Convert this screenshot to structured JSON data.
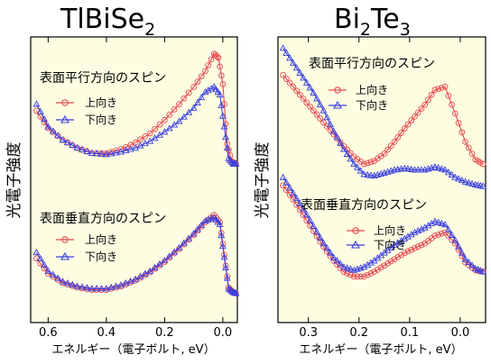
{
  "panel_left": {
    "title_main": "TlBiSe",
    "title_sub": "2",
    "ylabel": "光電子強度",
    "xlabel": "エネルギー（電子ボルト, eV）",
    "ticks": [
      "0.6",
      "0.4",
      "0.2",
      "0.0"
    ],
    "upper_caption": "表面平行方向のスピン",
    "lower_caption": "表面垂直方向のスピン",
    "legend_up": "上向き",
    "legend_down": "下向き"
  },
  "panel_right": {
    "title_parts": [
      "Bi",
      "2",
      "Te",
      "3"
    ],
    "ylabel": "光電子強度",
    "xlabel": "エネルギー（電子ボルト, eV）",
    "ticks": [
      "0.3",
      "0.2",
      "0.1",
      "0.0"
    ],
    "upper_caption": "表面平行方向のスピン",
    "lower_caption": "表面垂直方向のスピン",
    "legend_up": "上向き",
    "legend_down": "下向き"
  },
  "colors": {
    "up": "#e8484e",
    "down": "#3a3fe0",
    "panel_bg": "#fdfde2"
  },
  "chart_data": [
    {
      "type": "scatter",
      "title": "TlBiSe2",
      "xlabel": "エネルギー（電子ボルト, eV）",
      "ylabel": "光電子強度",
      "xlim": [
        0.66,
        -0.05
      ],
      "xticks": [
        0.6,
        0.4,
        0.2,
        0.0
      ],
      "groups": [
        {
          "caption": "表面平行方向のスピン",
          "series": [
            {
              "name": "上向き",
              "color": "#e8484e",
              "marker": "circle",
              "points": [
                [
                  0.64,
                  0.7
                ],
                [
                  0.6,
                  0.57
                ],
                [
                  0.55,
                  0.48
                ],
                [
                  0.5,
                  0.42
                ],
                [
                  0.45,
                  0.38
                ],
                [
                  0.4,
                  0.38
                ],
                [
                  0.35,
                  0.41
                ],
                [
                  0.3,
                  0.46
                ],
                [
                  0.25,
                  0.53
                ],
                [
                  0.2,
                  0.63
                ],
                [
                  0.15,
                  0.75
                ],
                [
                  0.1,
                  0.88
                ],
                [
                  0.06,
                  1.0
                ],
                [
                  0.03,
                  1.13
                ],
                [
                  0.015,
                  1.1
                ],
                [
                  0.0,
                  0.9
                ],
                [
                  -0.015,
                  0.45
                ],
                [
                  -0.03,
                  0.32
                ],
                [
                  -0.045,
                  0.3
                ]
              ]
            },
            {
              "name": "下向き",
              "color": "#3a3fe0",
              "marker": "triangle",
              "points": [
                [
                  0.64,
                  0.75
                ],
                [
                  0.6,
                  0.58
                ],
                [
                  0.55,
                  0.48
                ],
                [
                  0.5,
                  0.42
                ],
                [
                  0.45,
                  0.38
                ],
                [
                  0.4,
                  0.37
                ],
                [
                  0.35,
                  0.39
                ],
                [
                  0.3,
                  0.42
                ],
                [
                  0.25,
                  0.47
                ],
                [
                  0.2,
                  0.54
                ],
                [
                  0.15,
                  0.62
                ],
                [
                  0.1,
                  0.72
                ],
                [
                  0.06,
                  0.84
                ],
                [
                  0.03,
                  0.88
                ],
                [
                  0.01,
                  0.82
                ],
                [
                  -0.005,
                  0.58
                ],
                [
                  -0.02,
                  0.34
                ],
                [
                  -0.035,
                  0.3
                ],
                [
                  -0.045,
                  0.3
                ]
              ]
            }
          ]
        },
        {
          "caption": "表面垂直方向のスピン",
          "series": [
            {
              "name": "上向き",
              "color": "#e8484e",
              "marker": "circle",
              "points": [
                [
                  0.64,
                  0.55
                ],
                [
                  0.6,
                  0.42
                ],
                [
                  0.55,
                  0.34
                ],
                [
                  0.5,
                  0.3
                ],
                [
                  0.45,
                  0.28
                ],
                [
                  0.4,
                  0.28
                ],
                [
                  0.35,
                  0.31
                ],
                [
                  0.3,
                  0.36
                ],
                [
                  0.25,
                  0.43
                ],
                [
                  0.2,
                  0.52
                ],
                [
                  0.15,
                  0.63
                ],
                [
                  0.1,
                  0.75
                ],
                [
                  0.06,
                  0.86
                ],
                [
                  0.03,
                  0.92
                ],
                [
                  0.01,
                  0.86
                ],
                [
                  -0.005,
                  0.58
                ],
                [
                  -0.02,
                  0.3
                ],
                [
                  -0.035,
                  0.26
                ],
                [
                  -0.045,
                  0.25
                ]
              ]
            },
            {
              "name": "下向き",
              "color": "#3a3fe0",
              "marker": "triangle",
              "points": [
                [
                  0.64,
                  0.6
                ],
                [
                  0.6,
                  0.44
                ],
                [
                  0.55,
                  0.35
                ],
                [
                  0.5,
                  0.31
                ],
                [
                  0.45,
                  0.29
                ],
                [
                  0.4,
                  0.29
                ],
                [
                  0.35,
                  0.32
                ],
                [
                  0.3,
                  0.37
                ],
                [
                  0.25,
                  0.44
                ],
                [
                  0.2,
                  0.53
                ],
                [
                  0.15,
                  0.64
                ],
                [
                  0.1,
                  0.76
                ],
                [
                  0.06,
                  0.87
                ],
                [
                  0.03,
                  0.9
                ],
                [
                  0.01,
                  0.84
                ],
                [
                  -0.005,
                  0.56
                ],
                [
                  -0.02,
                  0.29
                ],
                [
                  -0.035,
                  0.26
                ],
                [
                  -0.045,
                  0.25
                ]
              ]
            }
          ]
        }
      ]
    },
    {
      "type": "scatter",
      "title": "Bi2Te3",
      "xlabel": "エネルギー（電子ボルト, eV）",
      "ylabel": "光電子強度",
      "xlim": [
        0.36,
        -0.05
      ],
      "xticks": [
        0.3,
        0.2,
        0.1,
        0.0
      ],
      "groups": [
        {
          "caption": "表面平行方向のスピン",
          "series": [
            {
              "name": "上向き",
              "color": "#e8484e",
              "marker": "circle",
              "points": [
                [
                  0.35,
                  1.0
                ],
                [
                  0.33,
                  0.92
                ],
                [
                  0.31,
                  0.84
                ],
                [
                  0.29,
                  0.76
                ],
                [
                  0.27,
                  0.68
                ],
                [
                  0.25,
                  0.6
                ],
                [
                  0.23,
                  0.52
                ],
                [
                  0.21,
                  0.45
                ],
                [
                  0.19,
                  0.4
                ],
                [
                  0.17,
                  0.42
                ],
                [
                  0.15,
                  0.47
                ],
                [
                  0.13,
                  0.55
                ],
                [
                  0.11,
                  0.64
                ],
                [
                  0.09,
                  0.72
                ],
                [
                  0.07,
                  0.8
                ],
                [
                  0.05,
                  0.9
                ],
                [
                  0.03,
                  0.92
                ],
                [
                  0.01,
                  0.74
                ],
                [
                  -0.01,
                  0.55
                ],
                [
                  -0.03,
                  0.43
                ],
                [
                  -0.045,
                  0.4
                ]
              ]
            },
            {
              "name": "下向き",
              "color": "#3a3fe0",
              "marker": "triangle",
              "points": [
                [
                  0.35,
                  1.18
                ],
                [
                  0.33,
                  1.08
                ],
                [
                  0.31,
                  0.98
                ],
                [
                  0.29,
                  0.88
                ],
                [
                  0.27,
                  0.76
                ],
                [
                  0.25,
                  0.62
                ],
                [
                  0.23,
                  0.5
                ],
                [
                  0.21,
                  0.4
                ],
                [
                  0.19,
                  0.33
                ],
                [
                  0.17,
                  0.32
                ],
                [
                  0.15,
                  0.34
                ],
                [
                  0.13,
                  0.36
                ],
                [
                  0.11,
                  0.37
                ],
                [
                  0.09,
                  0.36
                ],
                [
                  0.07,
                  0.36
                ],
                [
                  0.05,
                  0.38
                ],
                [
                  0.03,
                  0.36
                ],
                [
                  0.01,
                  0.31
                ],
                [
                  -0.01,
                  0.28
                ],
                [
                  -0.03,
                  0.26
                ],
                [
                  -0.045,
                  0.25
                ]
              ]
            }
          ]
        },
        {
          "caption": "表面垂直方向のスピン",
          "series": [
            {
              "name": "上向き",
              "color": "#e8484e",
              "marker": "circle",
              "points": [
                [
                  0.35,
                  0.85
                ],
                [
                  0.33,
                  0.76
                ],
                [
                  0.31,
                  0.66
                ],
                [
                  0.29,
                  0.56
                ],
                [
                  0.27,
                  0.46
                ],
                [
                  0.25,
                  0.37
                ],
                [
                  0.23,
                  0.3
                ],
                [
                  0.21,
                  0.27
                ],
                [
                  0.19,
                  0.27
                ],
                [
                  0.17,
                  0.3
                ],
                [
                  0.15,
                  0.34
                ],
                [
                  0.13,
                  0.38
                ],
                [
                  0.11,
                  0.42
                ],
                [
                  0.09,
                  0.45
                ],
                [
                  0.07,
                  0.48
                ],
                [
                  0.05,
                  0.53
                ],
                [
                  0.03,
                  0.55
                ],
                [
                  0.01,
                  0.48
                ],
                [
                  -0.01,
                  0.36
                ],
                [
                  -0.03,
                  0.31
                ],
                [
                  -0.045,
                  0.3
                ]
              ]
            },
            {
              "name": "下向き",
              "color": "#3a3fe0",
              "marker": "triangle",
              "points": [
                [
                  0.35,
                  0.9
                ],
                [
                  0.33,
                  0.8
                ],
                [
                  0.31,
                  0.7
                ],
                [
                  0.29,
                  0.59
                ],
                [
                  0.27,
                  0.48
                ],
                [
                  0.25,
                  0.39
                ],
                [
                  0.23,
                  0.33
                ],
                [
                  0.21,
                  0.31
                ],
                [
                  0.19,
                  0.33
                ],
                [
                  0.17,
                  0.37
                ],
                [
                  0.15,
                  0.42
                ],
                [
                  0.13,
                  0.47
                ],
                [
                  0.11,
                  0.51
                ],
                [
                  0.09,
                  0.55
                ],
                [
                  0.07,
                  0.58
                ],
                [
                  0.05,
                  0.62
                ],
                [
                  0.03,
                  0.6
                ],
                [
                  0.01,
                  0.5
                ],
                [
                  -0.01,
                  0.38
                ],
                [
                  -0.03,
                  0.32
                ],
                [
                  -0.045,
                  0.3
                ]
              ]
            }
          ]
        }
      ]
    }
  ]
}
